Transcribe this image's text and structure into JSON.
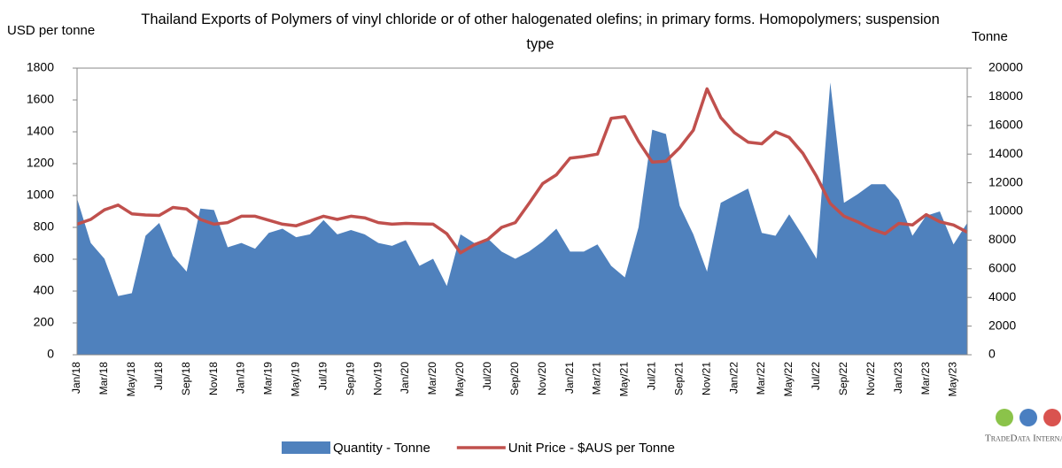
{
  "chart_data": {
    "type": "area_line",
    "title": "Thailand Exports of Polymers of vinyl chloride or of other halogenated olefins; in primary forms. Homopolymers; suspension type",
    "ylabel": "USD per tonne",
    "y2label": "Tonne",
    "categories": [
      "Jan/18",
      null,
      "Mar/18",
      null,
      "May/18",
      null,
      "Jul/18",
      null,
      "Sep/18",
      null,
      "Nov/18",
      null,
      "Jan/19",
      null,
      "Mar/19",
      null,
      "May/19",
      null,
      "Jul/19",
      null,
      "Sep/19",
      null,
      "Nov/19",
      null,
      "Jan/20",
      null,
      "Mar/20",
      null,
      "May/20",
      null,
      "Jul/20",
      null,
      "Sep/20",
      null,
      "Nov/20",
      null,
      "Jan/21",
      null,
      "Mar/21",
      null,
      "May/21",
      null,
      "Jul/21",
      null,
      "Sep/21",
      null,
      "Nov/21",
      null,
      "Jan/22",
      null,
      "Mar/22",
      null,
      "May/22",
      null,
      "Jul/22",
      null,
      "Sep/22",
      null,
      "Nov/22",
      null,
      "Jan/23",
      null,
      "Mar/23",
      null,
      "May/23",
      null
    ],
    "series": [
      {
        "name": "Quantity - Tonne",
        "color": "#4f81bd",
        "axis": "y2",
        "kind": "area",
        "values": [
          10900,
          7800,
          6700,
          4100,
          4300,
          8300,
          9200,
          6900,
          5800,
          10200,
          10100,
          7500,
          7800,
          7400,
          8500,
          8800,
          8200,
          8400,
          9400,
          8400,
          8700,
          8400,
          7800,
          7600,
          8000,
          6200,
          6700,
          4800,
          8400,
          7800,
          8100,
          7200,
          6700,
          7200,
          7900,
          8800,
          7200,
          7200,
          7700,
          6200,
          5400,
          8900,
          15700,
          15400,
          10400,
          8400,
          5800,
          10600,
          11100,
          11600,
          8500,
          8300,
          9800,
          8300,
          6700,
          19000,
          10600,
          11200,
          11900,
          11900,
          10800,
          8300,
          9700,
          10000,
          7700,
          9200
        ]
      },
      {
        "name": "Unit Price - $AUS per Tonne",
        "color": "#c0504d",
        "axis": "y",
        "kind": "line",
        "values": [
          820,
          850,
          910,
          940,
          885,
          878,
          875,
          925,
          915,
          850,
          820,
          830,
          870,
          870,
          845,
          820,
          810,
          840,
          870,
          850,
          870,
          860,
          830,
          820,
          825,
          822,
          820,
          760,
          640,
          690,
          725,
          800,
          830,
          950,
          1075,
          1130,
          1235,
          1245,
          1260,
          1485,
          1495,
          1340,
          1210,
          1215,
          1300,
          1410,
          1670,
          1490,
          1395,
          1335,
          1325,
          1400,
          1365,
          1265,
          1120,
          950,
          870,
          835,
          790,
          760,
          825,
          815,
          880,
          835,
          815,
          770
        ]
      }
    ],
    "ylim": [
      0,
      1800
    ],
    "yticks": [
      0,
      200,
      400,
      600,
      800,
      1000,
      1200,
      1400,
      1600,
      1800
    ],
    "y2lim": [
      0,
      20000
    ],
    "y2ticks": [
      0,
      2000,
      4000,
      6000,
      8000,
      10000,
      12000,
      14000,
      16000,
      18000,
      20000
    ],
    "grid": false,
    "legend": "bottom",
    "logo": "TradeData International"
  }
}
